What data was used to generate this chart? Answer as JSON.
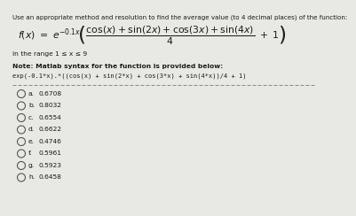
{
  "title_line1": "Use an appropriate method and resolution to find the average value (to 4 decimal places) of the function:",
  "range_text": "in the range 1 ≤ x ≤ 9",
  "note_title": "Note: Matlab syntax for the function is provided below:",
  "matlab_syntax": "exp(-0.1*x).*((cos(x) + sin(2*x) + cos(3*x) + sin(4*x))/4 + 1)",
  "options": [
    {
      "label": "a.",
      "value": "0.6708"
    },
    {
      "label": "b.",
      "value": "0.8032"
    },
    {
      "label": "c.",
      "value": "0.6554"
    },
    {
      "label": "d.",
      "value": "0.6622"
    },
    {
      "label": "e.",
      "value": "0.4746"
    },
    {
      "label": "f.",
      "value": "0.5961"
    },
    {
      "label": "g.",
      "value": "0.5923"
    },
    {
      "label": "h.",
      "value": "0.6458"
    }
  ],
  "bg_color": "#e8e8e4",
  "text_color": "#1a1a1a",
  "circle_color": "#555555"
}
